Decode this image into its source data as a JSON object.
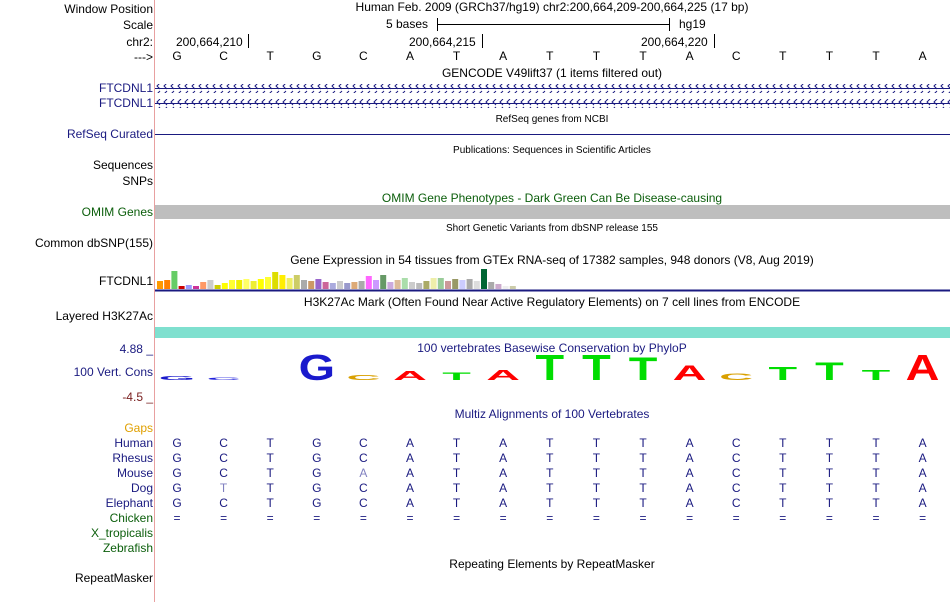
{
  "header": {
    "window_position_label": "Window Position",
    "scale_label": "Scale",
    "chrom_label": "chr2:",
    "strand_label": "--->",
    "assembly_title": "Human Feb. 2009 (GRCh37/hg19)   chr2:200,664,209-200,664,225 (17 bp)",
    "scale_text": "5 bases",
    "db_text": "hg19",
    "positions": [
      "200,664,210",
      "200,664,215",
      "200,664,220"
    ]
  },
  "bases": [
    "G",
    "C",
    "T",
    "G",
    "C",
    "A",
    "T",
    "A",
    "T",
    "T",
    "T",
    "A",
    "C",
    "T",
    "T",
    "T",
    "A"
  ],
  "tracks": {
    "gencode": {
      "title": "GENCODE V49lift37 (1 items filtered out)",
      "items": [
        "FTCDNL1",
        "FTCDNL1"
      ]
    },
    "refseq": {
      "label": "RefSeq Curated",
      "title": "RefSeq genes from NCBI"
    },
    "publications": {
      "label1": "Sequences",
      "label2": "SNPs",
      "title": "Publications: Sequences in Scientific Articles"
    },
    "omim": {
      "label": "OMIM Genes",
      "title": "OMIM Gene Phenotypes - Dark Green Can Be Disease-causing"
    },
    "dbsnp": {
      "label": "Common dbSNP(155)",
      "title": "Short Genetic Variants from dbSNP release 155"
    },
    "gtex": {
      "label": "FTCDNL1",
      "title": "Gene Expression in 54 tissues from GTEx RNA-seq of 17382 samples, 948 donors (V8, Aug 2019)"
    },
    "h3k27ac": {
      "label": "Layered H3K27Ac",
      "title": "H3K27Ac Mark (Often Found Near Active Regulatory Elements) on 7 cell lines from ENCODE"
    },
    "cons": {
      "label": "100 Vert. Cons",
      "max": "4.88 _",
      "min": "-4.5 _",
      "title": "100 vertebrates Basewise Conservation by PhyloP"
    },
    "multiz": {
      "title": "Multiz Alignments of 100 Vertebrates",
      "gaps_label": "Gaps"
    },
    "repeatmasker": {
      "label": "RepeatMasker",
      "title": "Repeating Elements by RepeatMasker"
    }
  },
  "alignment": [
    {
      "species": "Human",
      "seq": [
        "G",
        "C",
        "T",
        "G",
        "C",
        "A",
        "T",
        "A",
        "T",
        "T",
        "T",
        "A",
        "C",
        "T",
        "T",
        "T",
        "A"
      ]
    },
    {
      "species": "Rhesus",
      "seq": [
        "G",
        "C",
        "T",
        "G",
        "C",
        "A",
        "T",
        "A",
        "T",
        "T",
        "T",
        "A",
        "C",
        "T",
        "T",
        "T",
        "A"
      ]
    },
    {
      "species": "Mouse",
      "seq": [
        "G",
        "C",
        "T",
        "G",
        "A",
        "A",
        "T",
        "A",
        "T",
        "T",
        "T",
        "A",
        "C",
        "T",
        "T",
        "T",
        "A"
      ]
    },
    {
      "species": "Dog",
      "seq": [
        "G",
        "T",
        "T",
        "G",
        "C",
        "A",
        "T",
        "A",
        "T",
        "T",
        "T",
        "A",
        "C",
        "T",
        "T",
        "T",
        "A"
      ]
    },
    {
      "species": "Elephant",
      "seq": [
        "G",
        "C",
        "T",
        "G",
        "C",
        "A",
        "T",
        "A",
        "T",
        "T",
        "T",
        "A",
        "C",
        "T",
        "T",
        "T",
        "A"
      ]
    },
    {
      "species": "Chicken",
      "seq": [
        "=",
        "=",
        "=",
        "=",
        "=",
        "=",
        "=",
        "=",
        "=",
        "=",
        "=",
        "=",
        "=",
        "=",
        "=",
        "=",
        "="
      ]
    },
    {
      "species": "X_tropicalis",
      "seq": []
    },
    {
      "species": "Zebrafish",
      "seq": []
    }
  ],
  "colors": {
    "navy": "#1a1a80",
    "omim_bar": "#bebebe",
    "h3k27ac_bar": "#7fe0cf",
    "gaps_label": "#e0a000",
    "species_green": "#0b5e0b"
  }
}
